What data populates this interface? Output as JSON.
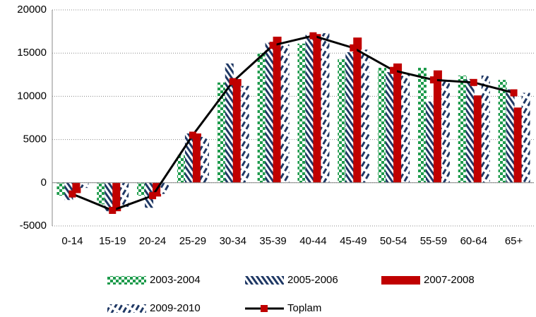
{
  "chart_data": {
    "type": "bar",
    "categories": [
      "0-14",
      "15-19",
      "20-24",
      "25-29",
      "30-34",
      "35-39",
      "40-44",
      "45-49",
      "50-54",
      "55-59",
      "60-64",
      "65+"
    ],
    "series": [
      {
        "name": "2003-2004",
        "color": "#1e9b4c",
        "pattern": "checker",
        "values": [
          -1500,
          -2500,
          -1500,
          3200,
          11600,
          15000,
          16100,
          14300,
          13300,
          13300,
          12400,
          11900
        ]
      },
      {
        "name": "2005-2006",
        "color": "#1f3864",
        "pattern": "stripes",
        "values": [
          -2000,
          -3300,
          -2900,
          5700,
          13800,
          16200,
          17100,
          15100,
          12800,
          9400,
          12000,
          10800
        ]
      },
      {
        "name": "2007-2008",
        "color": "#c00000",
        "pattern": "solid",
        "values": [
          -1200,
          -3300,
          -1600,
          5700,
          12000,
          16900,
          17200,
          16800,
          13800,
          13000,
          10100,
          8700
        ]
      },
      {
        "name": "2009-2010",
        "color": "#1f3864",
        "pattern": "dashes",
        "values": [
          -600,
          -2800,
          -1300,
          5300,
          11200,
          16000,
          17300,
          15400,
          12500,
          11700,
          12400,
          10400
        ]
      },
      {
        "name": "Toplam",
        "type": "line",
        "color": "#000000",
        "marker_color": "#c00000",
        "values": [
          -1300,
          -3200,
          -1500,
          5500,
          11700,
          15900,
          17000,
          15600,
          13000,
          11900,
          11600,
          10400
        ]
      }
    ],
    "ylim": [
      -5000,
      20000
    ],
    "yticks": [
      -5000,
      0,
      5000,
      10000,
      15000,
      20000
    ],
    "grid": true,
    "legend": "bottom"
  }
}
